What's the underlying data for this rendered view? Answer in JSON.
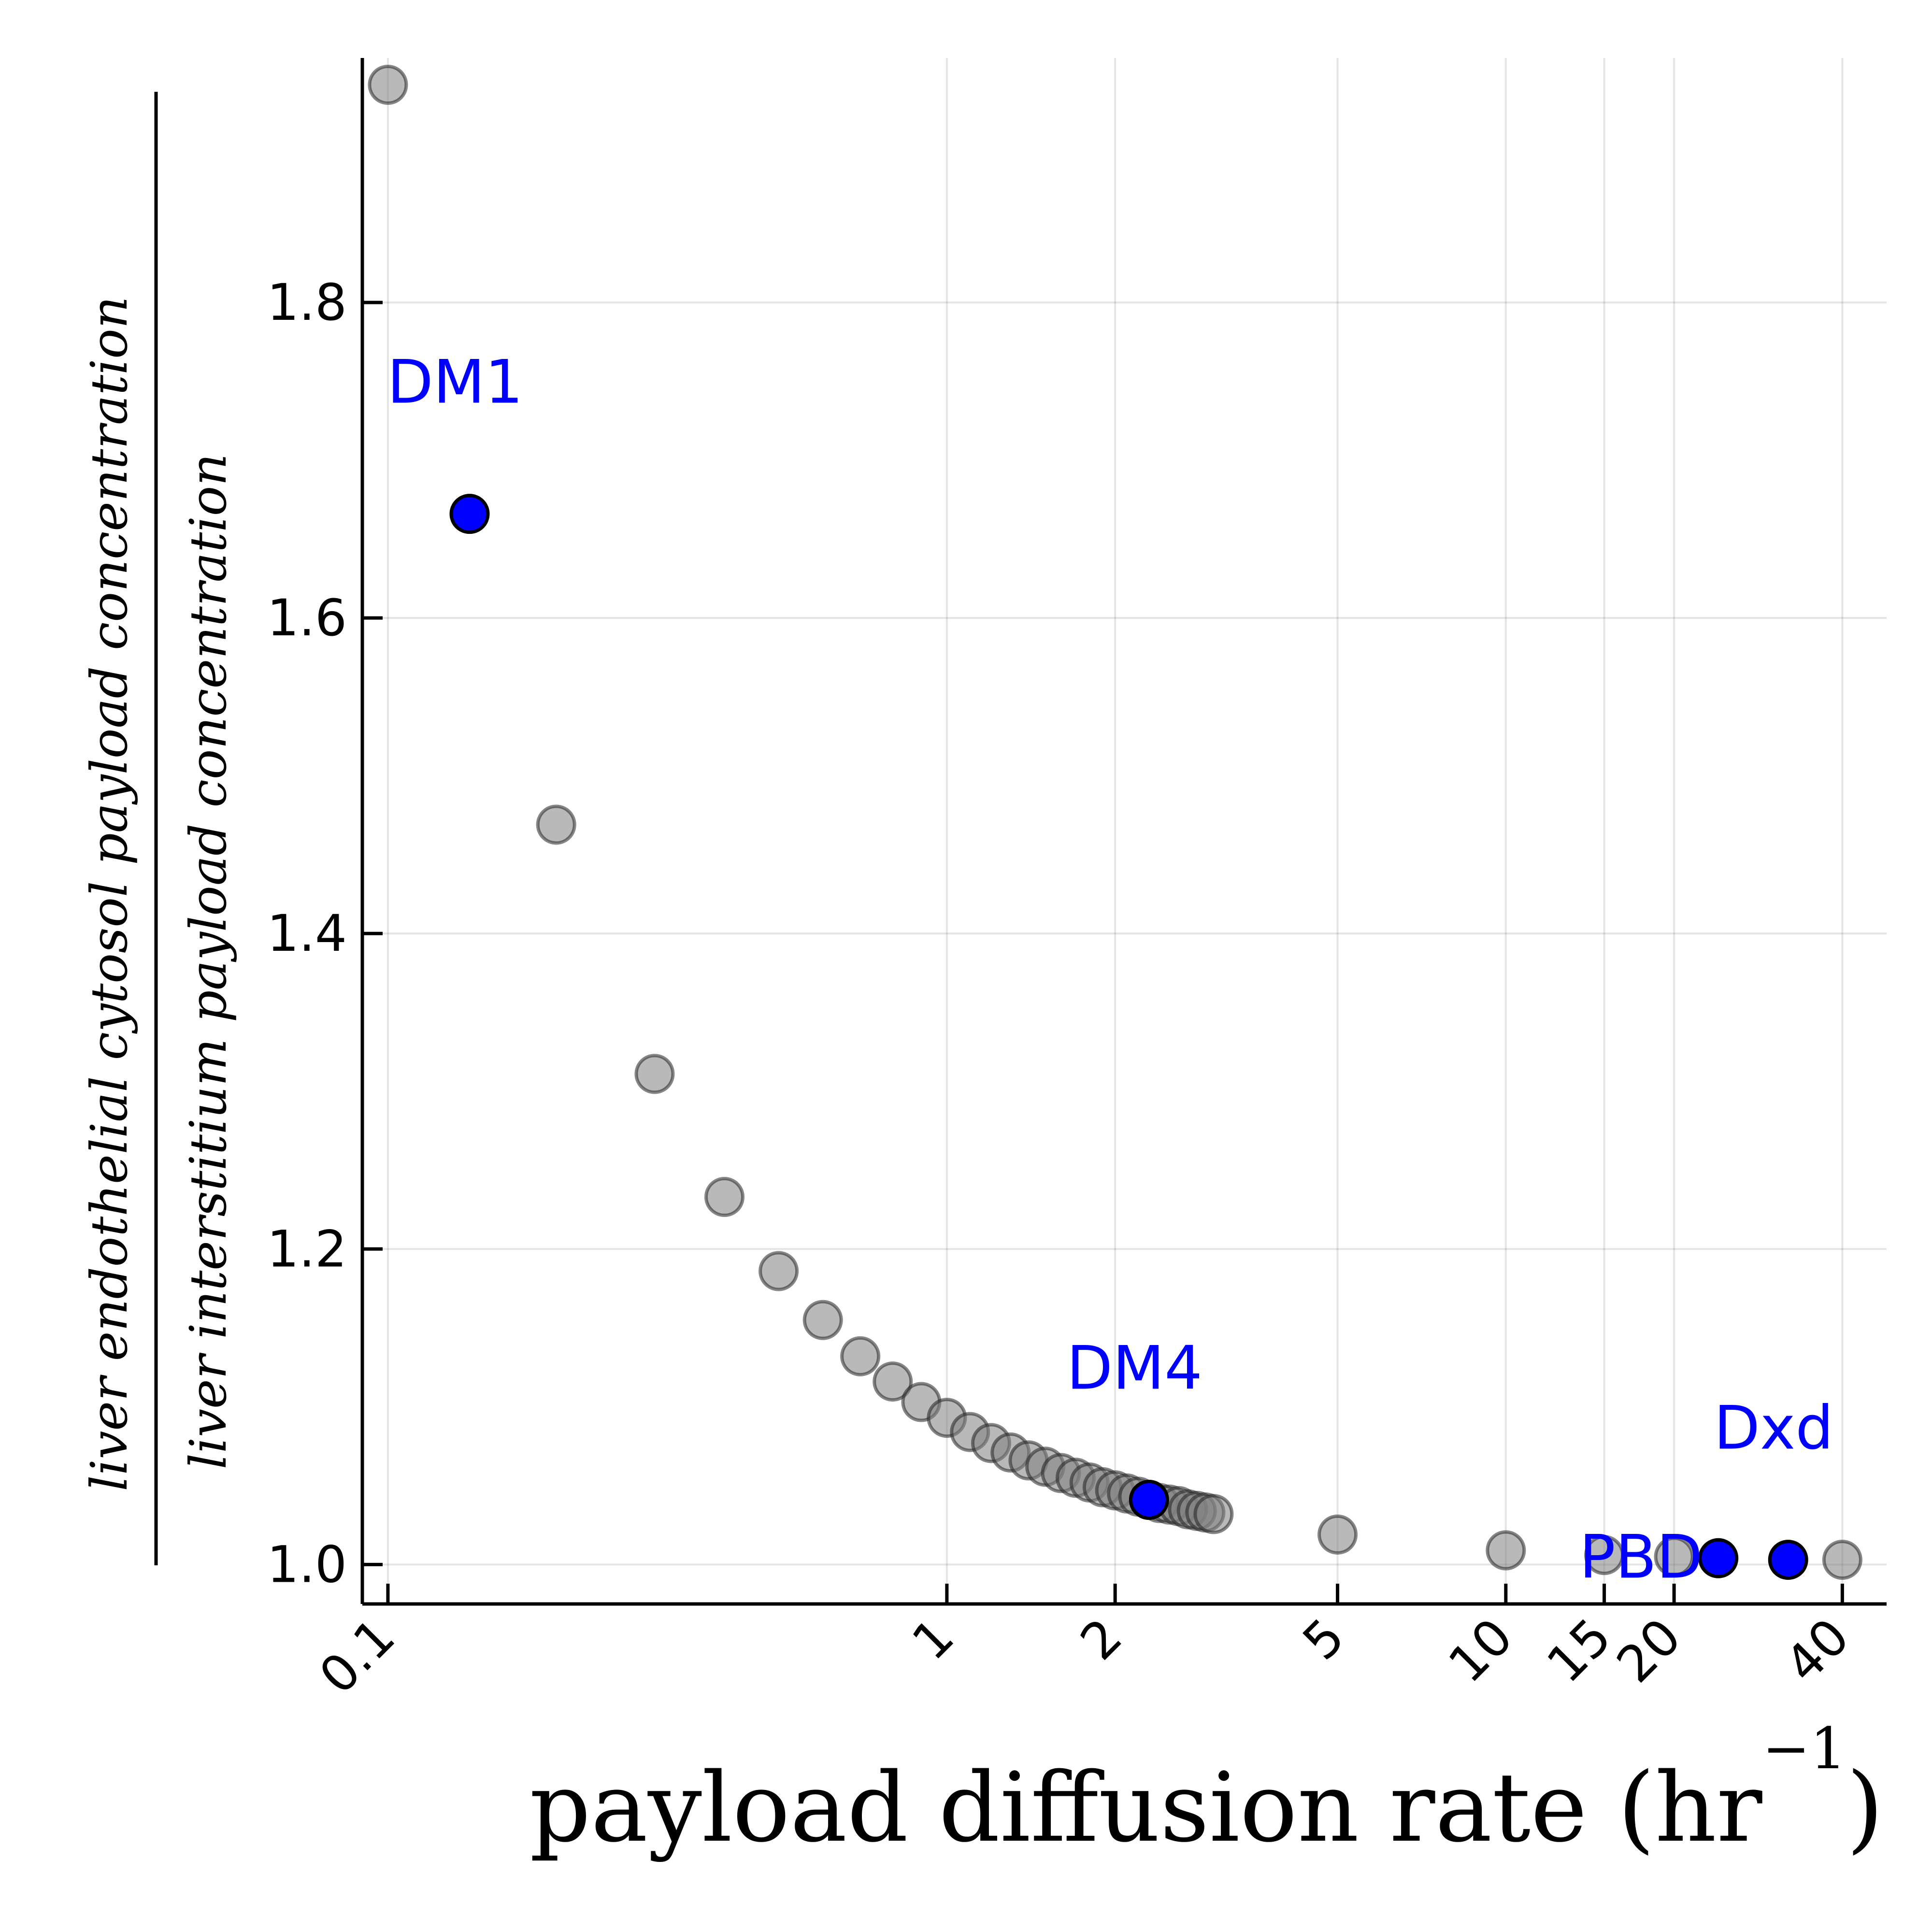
{
  "chart_data": {
    "type": "scatter",
    "title": "",
    "xlabel_main": "payload diffusion rate (hr",
    "xlabel_sup": "−1",
    "xlabel_close": ")",
    "ylabel_numerator": "liver endothelial cytosol payload concentration",
    "ylabel_denominator": "liver interstitium payload concentration",
    "x_scale": "log",
    "xlim": [
      0.09,
      48
    ],
    "ylim": [
      0.975,
      1.955
    ],
    "grid": true,
    "x_ticks": [
      {
        "value": 0.1,
        "label": "0.1"
      },
      {
        "value": 1,
        "label": "1"
      },
      {
        "value": 2,
        "label": "2"
      },
      {
        "value": 5,
        "label": "5"
      },
      {
        "value": 10,
        "label": "10"
      },
      {
        "value": 15,
        "label": "15"
      },
      {
        "value": 20,
        "label": "20"
      },
      {
        "value": 40,
        "label": "40"
      }
    ],
    "y_ticks": [
      {
        "value": 1.0,
        "label": "1.0"
      },
      {
        "value": 1.2,
        "label": "1.2"
      },
      {
        "value": 1.4,
        "label": "1.4"
      },
      {
        "value": 1.6,
        "label": "1.6"
      },
      {
        "value": 1.8,
        "label": "1.8"
      }
    ],
    "background_series": {
      "color": "#808080",
      "x": [
        0.1,
        0.2,
        0.3,
        0.4,
        0.5,
        0.6,
        0.7,
        0.8,
        0.9,
        1.0,
        1.1,
        1.2,
        1.3,
        1.4,
        1.5,
        1.6,
        1.7,
        1.8,
        1.9,
        2.0,
        2.1,
        2.2,
        2.3,
        2.4,
        2.5,
        2.6,
        2.7,
        2.8,
        2.9,
        3.0,
        5.0,
        10.0,
        15.0,
        20.0,
        40.0
      ],
      "y": [
        1.938,
        1.469,
        1.311,
        1.233,
        1.186,
        1.155,
        1.132,
        1.116,
        1.103,
        1.093,
        1.084,
        1.077,
        1.071,
        1.066,
        1.062,
        1.058,
        1.055,
        1.052,
        1.049,
        1.047,
        1.045,
        1.043,
        1.041,
        1.039,
        1.038,
        1.037,
        1.035,
        1.034,
        1.033,
        1.032,
        1.019,
        1.009,
        1.006,
        1.005,
        1.003
      ]
    },
    "highlight_series": {
      "color": "#0000ff",
      "points": [
        {
          "x": 0.14,
          "y": 1.666,
          "label": "DM1"
        },
        {
          "x": 2.3,
          "y": 1.041,
          "label": "DM4"
        },
        {
          "x": 24,
          "y": 1.004,
          "label": "PBD"
        },
        {
          "x": 32,
          "y": 1.003,
          "label": "Dxd"
        }
      ]
    }
  }
}
